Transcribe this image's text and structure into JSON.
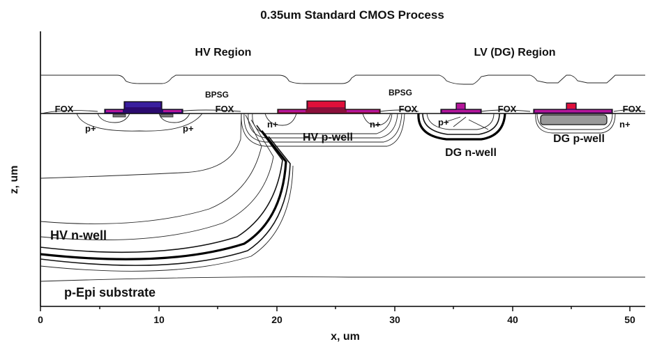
{
  "title": "0.35um Standard CMOS Process",
  "axes": {
    "xlabel": "x, um",
    "ylabel": "z, um",
    "x_ticks": [
      "0",
      "10",
      "20",
      "30",
      "40",
      "50"
    ]
  },
  "regions": {
    "hv": "HV Region",
    "lv": "LV (DG) Region"
  },
  "labels": {
    "bpsg_1": "BPSG",
    "bpsg_2": "BPSG",
    "fox_1": "FOX",
    "fox_2": "FOX",
    "fox_3": "FOX",
    "fox_4": "FOX",
    "fox_5": "FOX",
    "pplus_1": "p+",
    "pplus_2": "p+",
    "pplus_3": "p+",
    "nplus_1": "n+",
    "nplus_2": "n+",
    "nplus_3": "n+",
    "hv_pwell": "HV p-well",
    "hv_nwell": "HV n-well",
    "dg_nwell": "DG n-well",
    "dg_pwell": "DG p-well",
    "substrate": "p-Epi substrate"
  },
  "colors": {
    "gate_purple": "#3a1f9e",
    "gate_red": "#e0103a",
    "gate_magenta": "#b5169a",
    "line": "#111111"
  }
}
